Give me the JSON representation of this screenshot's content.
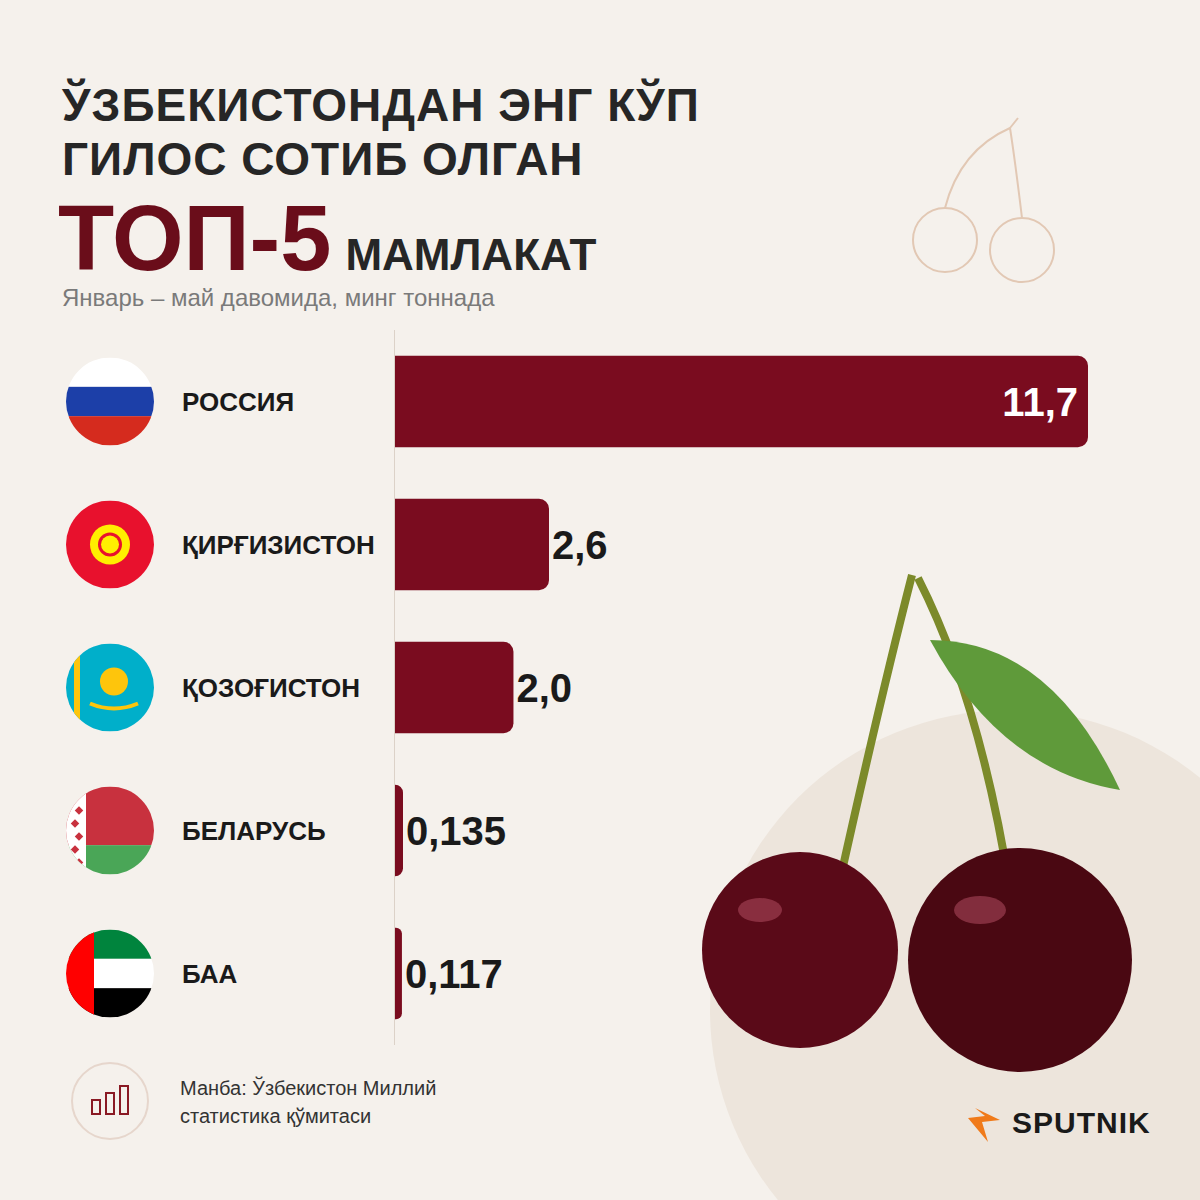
{
  "chart_data": {
    "type": "bar",
    "orientation": "horizontal",
    "title_lines": [
      "ЎЗБЕКИСТОНДАН ЭНГ КЎП",
      "ГИЛОС СОТИБ ОЛГАН"
    ],
    "title_highlight": "ТОП-5",
    "title_end": "МАМЛАКАТ",
    "subtitle": "Январь – май давомида, минг тоннада",
    "categories": [
      "РОССИЯ",
      "ҚИРҒИЗИСТОН",
      "ҚОЗОҒИСТОН",
      "БЕЛАРУСЬ",
      "БАА"
    ],
    "values": [
      11.7,
      2.6,
      2.0,
      0.135,
      0.117
    ],
    "value_labels": [
      "11,7",
      "2,6",
      "2,0",
      "0,135",
      "0,117"
    ],
    "color": "#7a0c1f",
    "xlim": [
      0,
      11.7
    ],
    "data_labels": true,
    "tick_labels": false,
    "grid": false,
    "source": "Манба: Ўзбекистон Миллий статистика қўмитаси",
    "brand": "SPUTNIK"
  }
}
